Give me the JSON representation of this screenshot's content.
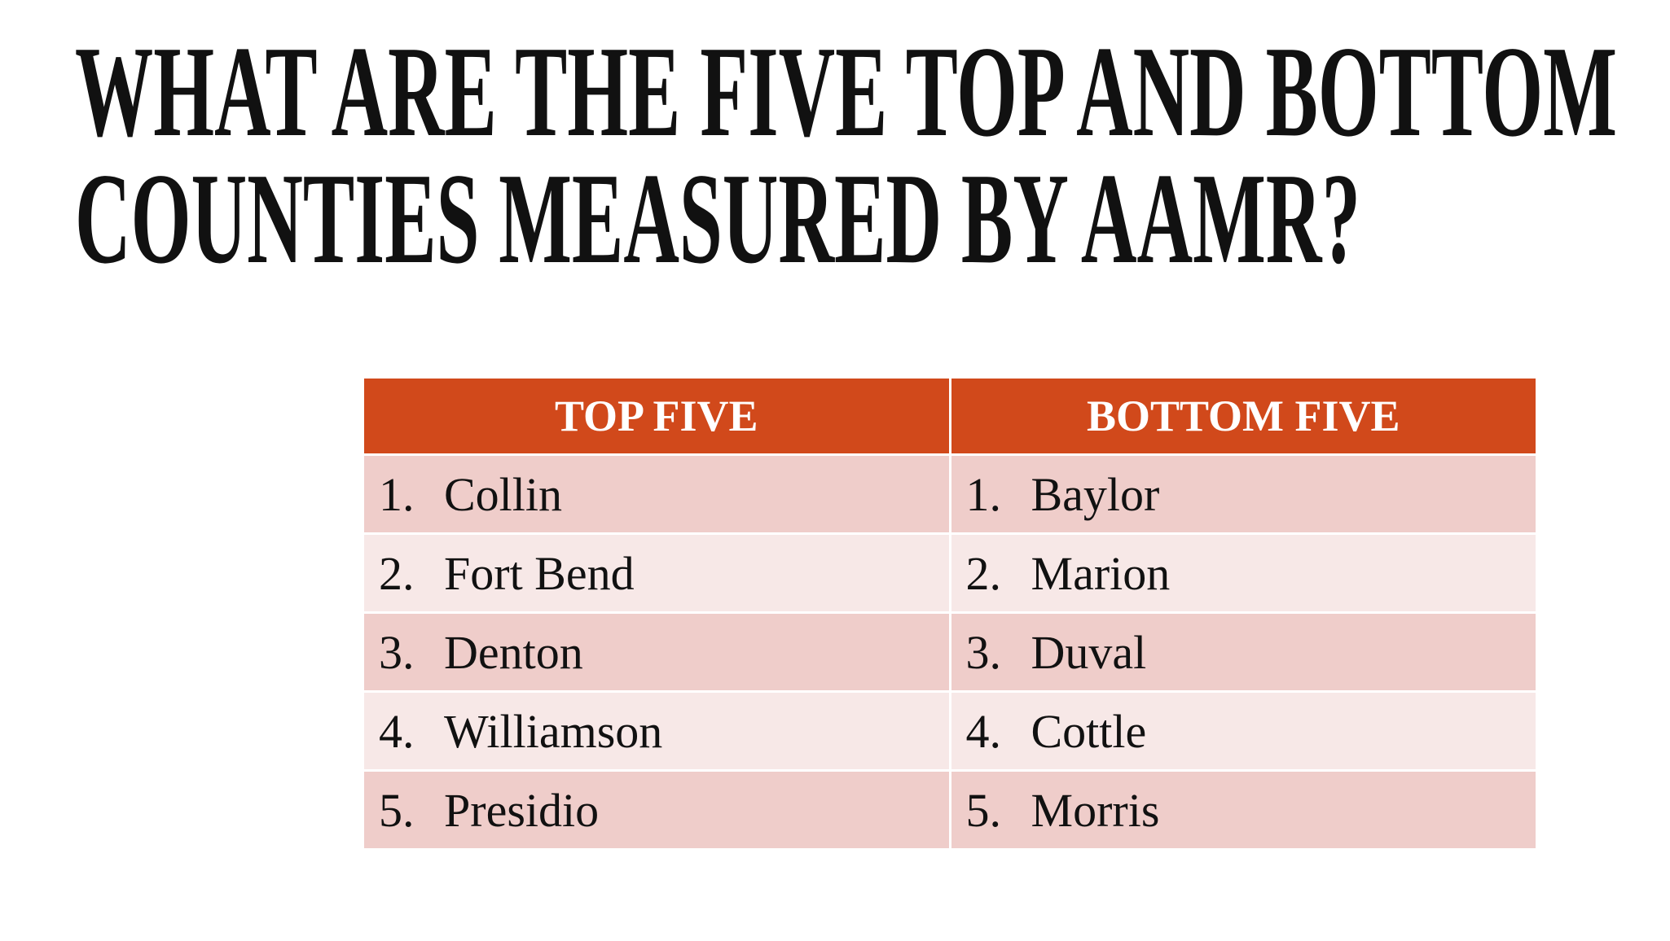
{
  "title": [
    "WHAT ARE THE FIVE TOP AND BOTTOM",
    "COUNTIES MEASURED BY AAMR?"
  ],
  "table": {
    "headers": [
      "TOP FIVE",
      "BOTTOM FIVE"
    ],
    "rows": [
      [
        {
          "number": "1.",
          "name": "Collin"
        },
        {
          "number": "1.",
          "name": "Baylor"
        }
      ],
      [
        {
          "number": "2.",
          "name": "Fort Bend"
        },
        {
          "number": "2.",
          "name": "Marion"
        }
      ],
      [
        {
          "number": "3.",
          "name": "Denton"
        },
        {
          "number": "3.",
          "name": "Duval"
        }
      ],
      [
        {
          "number": "4.",
          "name": "Williamson"
        },
        {
          "number": "4.",
          "name": "Cottle"
        }
      ],
      [
        {
          "number": "5.",
          "name": "Presidio"
        },
        {
          "number": "5.",
          "name": "Morris"
        }
      ]
    ]
  }
}
